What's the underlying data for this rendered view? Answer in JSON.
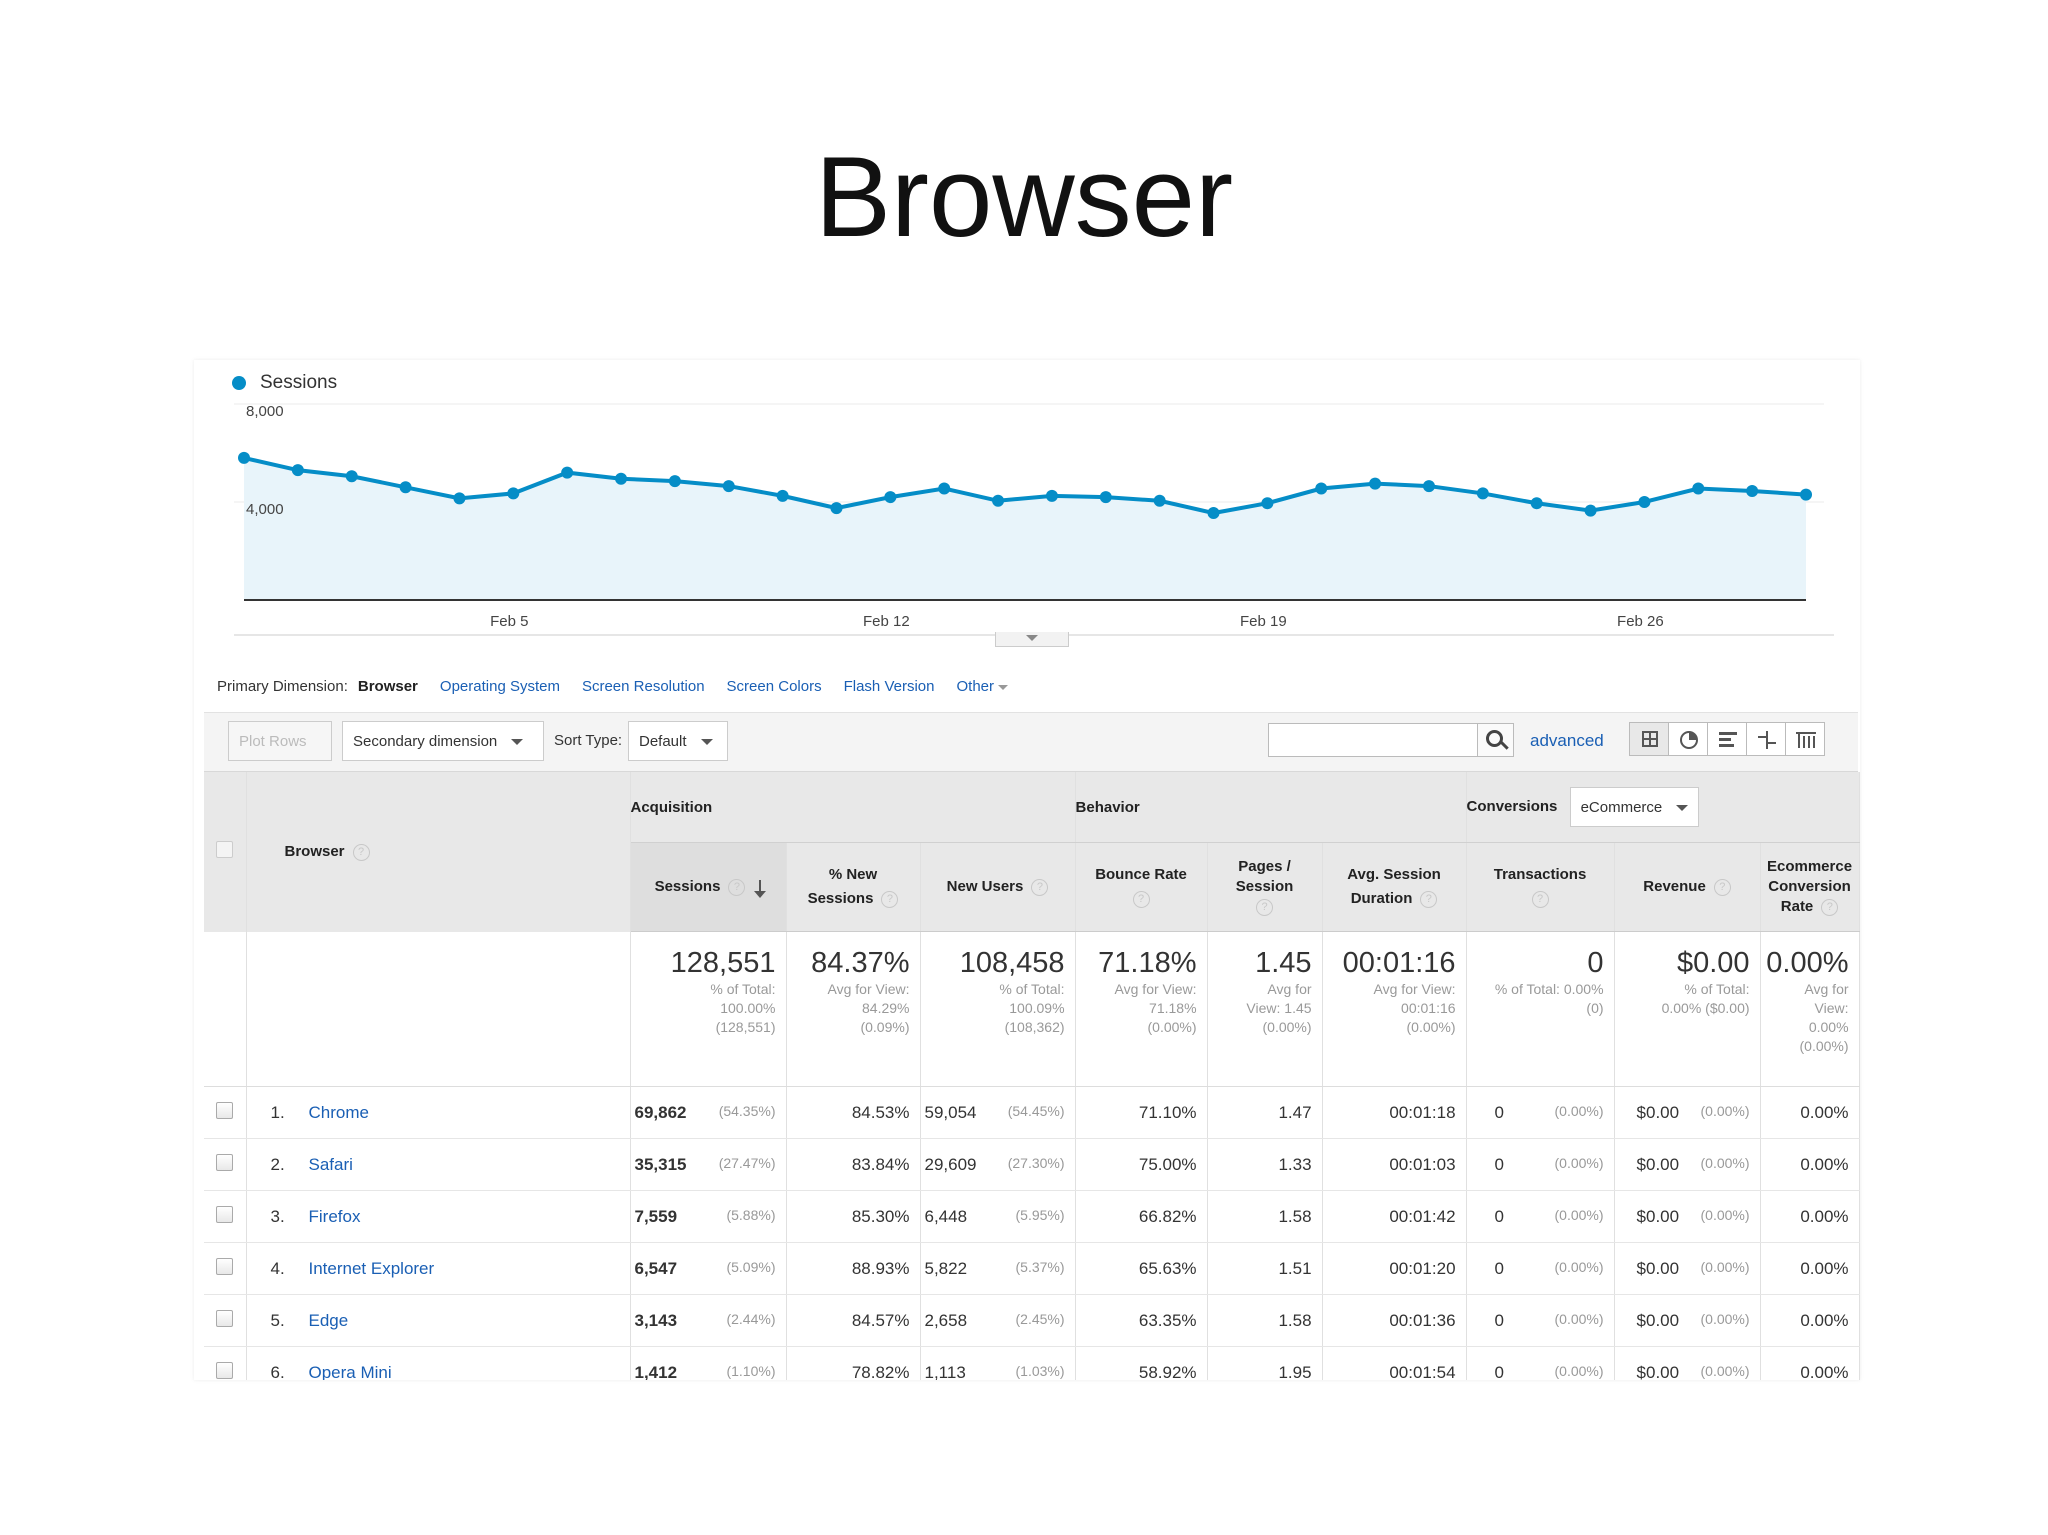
{
  "slide_title": "Browser",
  "chart": {
    "legend": "Sessions",
    "y_ticks": [
      "8,000",
      "4,000"
    ],
    "x_ticks": [
      "Feb 5",
      "Feb 12",
      "Feb 19",
      "Feb 26"
    ],
    "color": "#058dc7",
    "fill": "#e8f4fa"
  },
  "chart_data": {
    "type": "area",
    "series": [
      {
        "name": "Sessions",
        "values": [
          5800,
          5300,
          5050,
          4600,
          4150,
          4350,
          5200,
          4950,
          4850,
          4650,
          4250,
          3750,
          4200,
          4550,
          4050,
          4250,
          4200,
          4050,
          3550,
          3950,
          4550,
          4750,
          4650,
          4350,
          3950,
          3650,
          4000,
          4550,
          4450,
          4300
        ]
      }
    ],
    "x_ticks": [
      "Feb 5",
      "Feb 12",
      "Feb 19",
      "Feb 26"
    ],
    "y_ticks": [
      "8,000",
      "4,000"
    ],
    "ylim": [
      0,
      8000
    ],
    "legend": "top-left",
    "grid": true
  },
  "primary_dimension": {
    "label": "Primary Dimension:",
    "selected": "Browser",
    "options": [
      "Operating System",
      "Screen Resolution",
      "Screen Colors",
      "Flash Version"
    ],
    "other": "Other"
  },
  "toolbar": {
    "plot_rows": "Plot Rows",
    "secondary_dimension": "Secondary dimension",
    "sort_type_label": "Sort Type:",
    "sort_type_value": "Default",
    "search_value": "",
    "advanced": "advanced"
  },
  "table": {
    "dimension_header": "Browser",
    "groups": {
      "acquisition": "Acquisition",
      "behavior": "Behavior",
      "conversions": "Conversions",
      "conversions_select": "eCommerce"
    },
    "columns": {
      "sessions": "Sessions",
      "new_sessions_1": "% New",
      "new_sessions_2": "Sessions",
      "new_users": "New Users",
      "bounce_rate": "Bounce Rate",
      "pages_session_1": "Pages /",
      "pages_session_2": "Session",
      "avg_dur_1": "Avg. Session",
      "avg_dur_2": "Duration",
      "transactions": "Transactions",
      "revenue": "Revenue",
      "ecr_1": "Ecommerce",
      "ecr_2": "Conversion",
      "ecr_3": "Rate"
    },
    "totals": {
      "sessions": {
        "value": "128,551",
        "sub": [
          "% of Total:",
          "100.00%",
          "(128,551)"
        ]
      },
      "new_sessions": {
        "value": "84.37%",
        "sub": [
          "Avg for View:",
          "84.29%",
          "(0.09%)"
        ]
      },
      "new_users": {
        "value": "108,458",
        "sub": [
          "% of Total:",
          "100.09%",
          "(108,362)"
        ]
      },
      "bounce_rate": {
        "value": "71.18%",
        "sub": [
          "Avg for View:",
          "71.18%",
          "(0.00%)"
        ]
      },
      "pages_session": {
        "value": "1.45",
        "sub": [
          "Avg for",
          "View: 1.45",
          "(0.00%)"
        ]
      },
      "avg_duration": {
        "value": "00:01:16",
        "sub": [
          "Avg for View:",
          "00:01:16",
          "(0.00%)"
        ]
      },
      "transactions": {
        "value": "0",
        "sub": [
          "% of Total: 0.00%",
          "(0)"
        ]
      },
      "revenue": {
        "value": "$0.00",
        "sub": [
          "% of Total:",
          "0.00% ($0.00)"
        ]
      },
      "ecr": {
        "value": "0.00%",
        "sub": [
          "Avg for",
          "View:",
          "0.00%",
          "(0.00%)"
        ]
      }
    },
    "rows": [
      {
        "idx": "1.",
        "name": "Chrome",
        "sessions": "69,862",
        "sessions_pct": "(54.35%)",
        "new_sessions": "84.53%",
        "new_users": "59,054",
        "new_users_pct": "(54.45%)",
        "bounce": "71.10%",
        "pages": "1.47",
        "duration": "00:01:18",
        "transactions": "0",
        "transactions_pct": "(0.00%)",
        "revenue": "$0.00",
        "revenue_pct": "(0.00%)",
        "ecr": "0.00%"
      },
      {
        "idx": "2.",
        "name": "Safari",
        "sessions": "35,315",
        "sessions_pct": "(27.47%)",
        "new_sessions": "83.84%",
        "new_users": "29,609",
        "new_users_pct": "(27.30%)",
        "bounce": "75.00%",
        "pages": "1.33",
        "duration": "00:01:03",
        "transactions": "0",
        "transactions_pct": "(0.00%)",
        "revenue": "$0.00",
        "revenue_pct": "(0.00%)",
        "ecr": "0.00%"
      },
      {
        "idx": "3.",
        "name": "Firefox",
        "sessions": "7,559",
        "sessions_pct": "(5.88%)",
        "new_sessions": "85.30%",
        "new_users": "6,448",
        "new_users_pct": "(5.95%)",
        "bounce": "66.82%",
        "pages": "1.58",
        "duration": "00:01:42",
        "transactions": "0",
        "transactions_pct": "(0.00%)",
        "revenue": "$0.00",
        "revenue_pct": "(0.00%)",
        "ecr": "0.00%"
      },
      {
        "idx": "4.",
        "name": "Internet Explorer",
        "sessions": "6,547",
        "sessions_pct": "(5.09%)",
        "new_sessions": "88.93%",
        "new_users": "5,822",
        "new_users_pct": "(5.37%)",
        "bounce": "65.63%",
        "pages": "1.51",
        "duration": "00:01:20",
        "transactions": "0",
        "transactions_pct": "(0.00%)",
        "revenue": "$0.00",
        "revenue_pct": "(0.00%)",
        "ecr": "0.00%"
      },
      {
        "idx": "5.",
        "name": "Edge",
        "sessions": "3,143",
        "sessions_pct": "(2.44%)",
        "new_sessions": "84.57%",
        "new_users": "2,658",
        "new_users_pct": "(2.45%)",
        "bounce": "63.35%",
        "pages": "1.58",
        "duration": "00:01:36",
        "transactions": "0",
        "transactions_pct": "(0.00%)",
        "revenue": "$0.00",
        "revenue_pct": "(0.00%)",
        "ecr": "0.00%"
      },
      {
        "idx": "6.",
        "name": "Opera Mini",
        "sessions": "1,412",
        "sessions_pct": "(1.10%)",
        "new_sessions": "78.82%",
        "new_users": "1,113",
        "new_users_pct": "(1.03%)",
        "bounce": "58.92%",
        "pages": "1.95",
        "duration": "00:01:54",
        "transactions": "0",
        "transactions_pct": "(0.00%)",
        "revenue": "$0.00",
        "revenue_pct": "(0.00%)",
        "ecr": "0.00%"
      }
    ]
  }
}
